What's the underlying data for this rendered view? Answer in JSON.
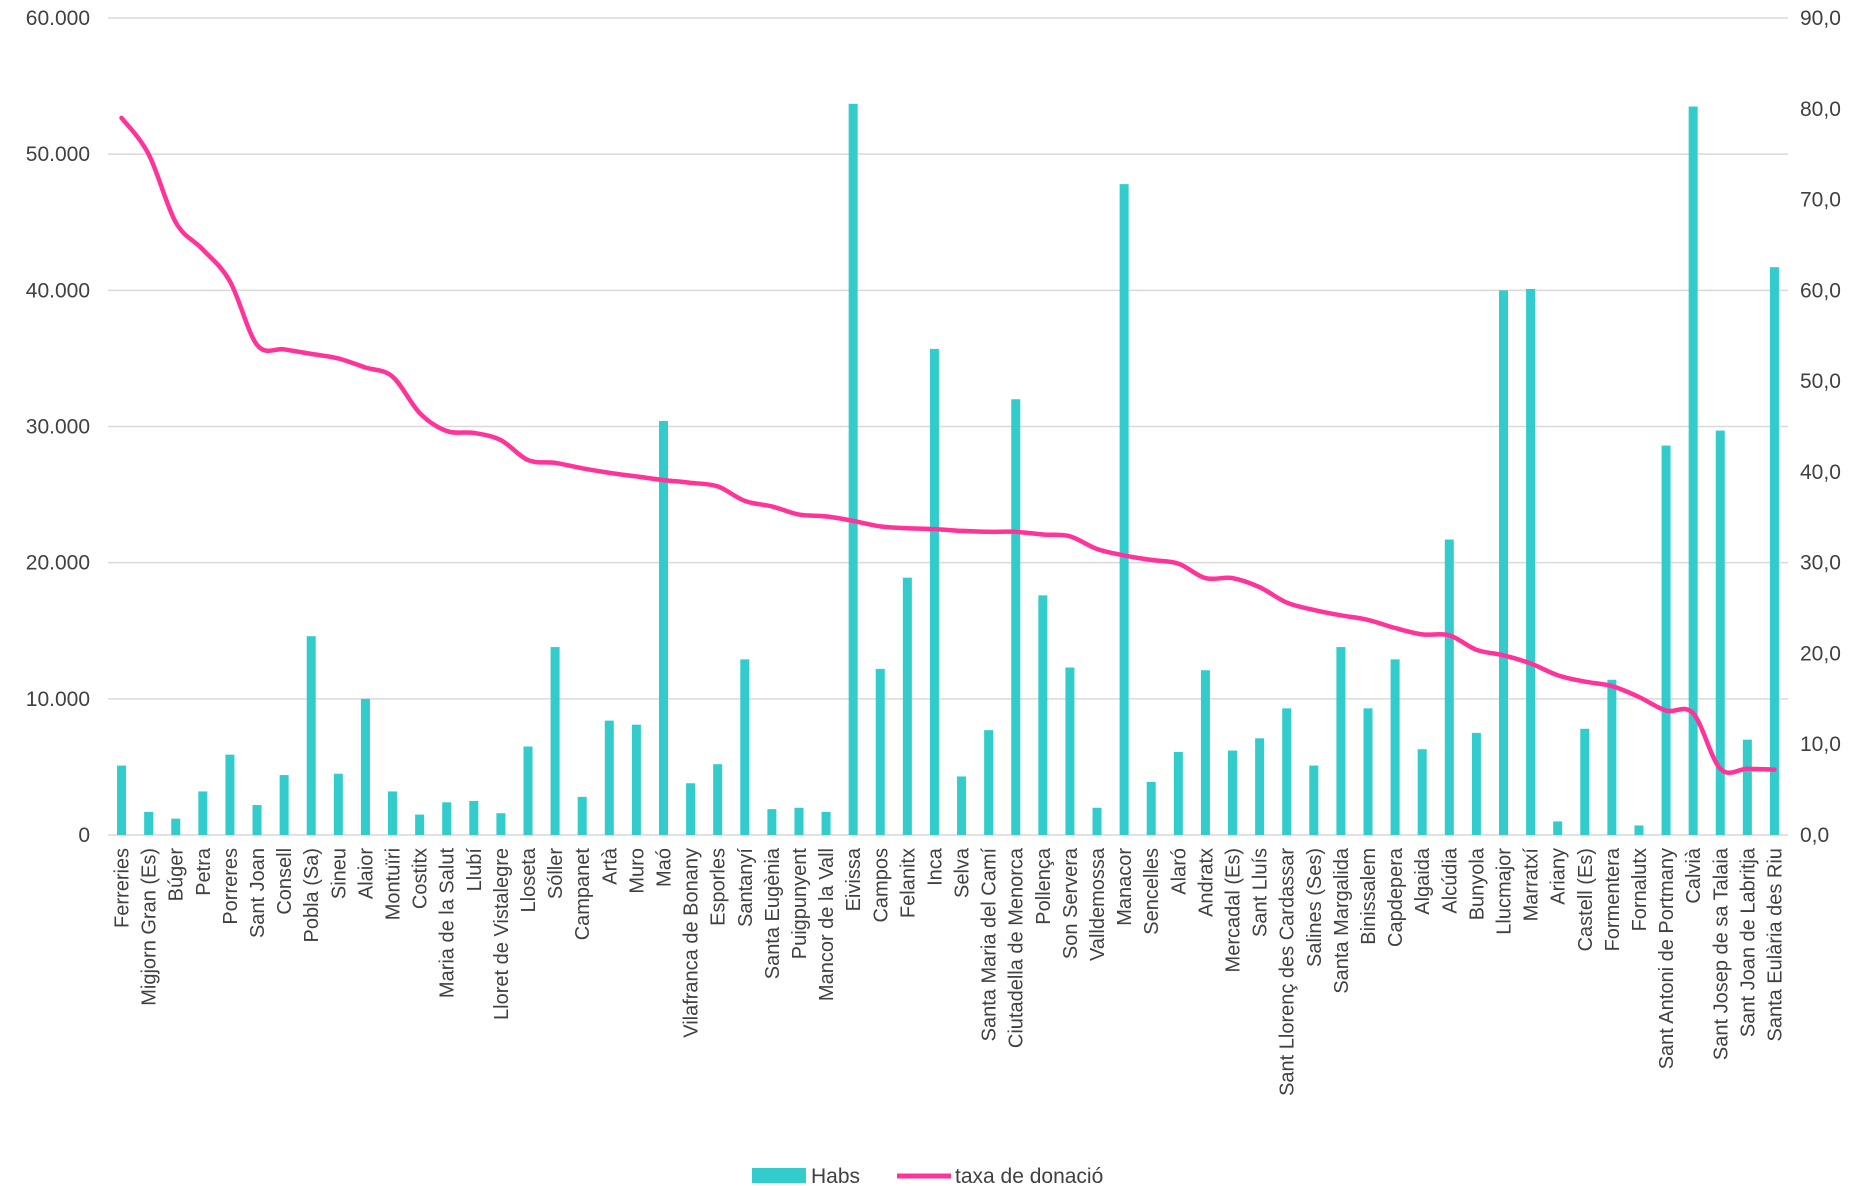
{
  "chart_data": {
    "type": "bar+line",
    "title": "",
    "xlabel": "",
    "ylabel": "",
    "ylim": [
      0,
      60000
    ],
    "y2lim": [
      0,
      90
    ],
    "y_ticks": [
      "0",
      "10.000",
      "20.000",
      "30.000",
      "40.000",
      "50.000",
      "60.000"
    ],
    "y2_ticks": [
      "0,0",
      "10,0",
      "20,0",
      "30,0",
      "40,0",
      "50,0",
      "60,0",
      "70,0",
      "80,0",
      "90,0"
    ],
    "grid": true,
    "legend_position": "bottom",
    "colors": {
      "bars": "#33CCCC",
      "line": "#FF3399",
      "grid": "#D9D9D9",
      "text": "#404040"
    },
    "categories": [
      "Ferreries",
      "Migjorn Gran (Es)",
      "Búger",
      "Petra",
      "Porreres",
      "Sant Joan",
      "Consell",
      "Pobla (Sa)",
      "Sineu",
      "Alaior",
      "Montuïri",
      "Costitx",
      "Maria de la Salut",
      "Llubí",
      "Lloret de Vistalegre",
      "Lloseta",
      "Sóller",
      "Campanet",
      "Artà",
      "Muro",
      "Maó",
      "Vilafranca de Bonany",
      "Esporles",
      "Santanyí",
      "Santa Eugènia",
      "Puigpunyent",
      "Mancor de la Vall",
      "Eivissa",
      "Campos",
      "Felanitx",
      "Inca",
      "Selva",
      "Santa Maria del Camí",
      "Ciutadella de Menorca",
      "Pollença",
      "Son Servera",
      "Valldemossa",
      "Manacor",
      "Sencelles",
      "Alaró",
      "Andratx",
      "Mercadal (Es)",
      "Sant Lluís",
      "Sant Llorenç des Cardassar",
      "Salines (Ses)",
      "Santa Margalida",
      "Binissalem",
      "Capdepera",
      "Algaida",
      "Alcúdia",
      "Bunyola",
      "Llucmajor",
      "Marratxí",
      "Ariany",
      "Castell (Es)",
      "Formentera",
      "Fornalutx",
      "Sant Antoni de Portmany",
      "Calvià",
      "Sant Josep de sa Talaia",
      "Sant Joan de Labritja",
      "Santa Eulària des Riu"
    ],
    "series": [
      {
        "name": "Habs",
        "type": "bar",
        "axis": "left",
        "values": [
          5100,
          1700,
          1200,
          3200,
          5900,
          2200,
          4400,
          14600,
          4500,
          10000,
          3200,
          1500,
          2400,
          2500,
          1600,
          6500,
          13800,
          2800,
          8400,
          8100,
          30400,
          3800,
          5200,
          12900,
          1900,
          2000,
          1700,
          53700,
          12200,
          18900,
          35700,
          4300,
          7700,
          32000,
          17600,
          12300,
          2000,
          47800,
          3900,
          6100,
          12100,
          6200,
          7100,
          9300,
          5100,
          13800,
          9300,
          12900,
          6300,
          21700,
          7500,
          40000,
          40100,
          1000,
          7800,
          11400,
          700,
          28600,
          53500,
          29700,
          7000,
          41700
        ]
      },
      {
        "name": "taxa de donació",
        "type": "line",
        "axis": "right",
        "values": [
          79.0,
          75.0,
          67.5,
          64.5,
          61.0,
          54.0,
          53.5,
          53.0,
          52.5,
          51.5,
          50.5,
          46.5,
          44.5,
          44.3,
          43.5,
          41.3,
          41.0,
          40.4,
          39.9,
          39.5,
          39.1,
          38.8,
          38.4,
          36.8,
          36.2,
          35.3,
          35.1,
          34.6,
          34.0,
          33.8,
          33.7,
          33.5,
          33.4,
          33.4,
          33.1,
          32.9,
          31.5,
          30.8,
          30.3,
          29.9,
          28.3,
          28.3,
          27.3,
          25.6,
          24.8,
          24.2,
          23.7,
          22.8,
          22.1,
          22.0,
          20.4,
          19.8,
          18.9,
          17.6,
          16.9,
          16.4,
          15.2,
          13.7,
          13.4,
          7.3,
          7.3,
          7.2
        ]
      }
    ]
  }
}
